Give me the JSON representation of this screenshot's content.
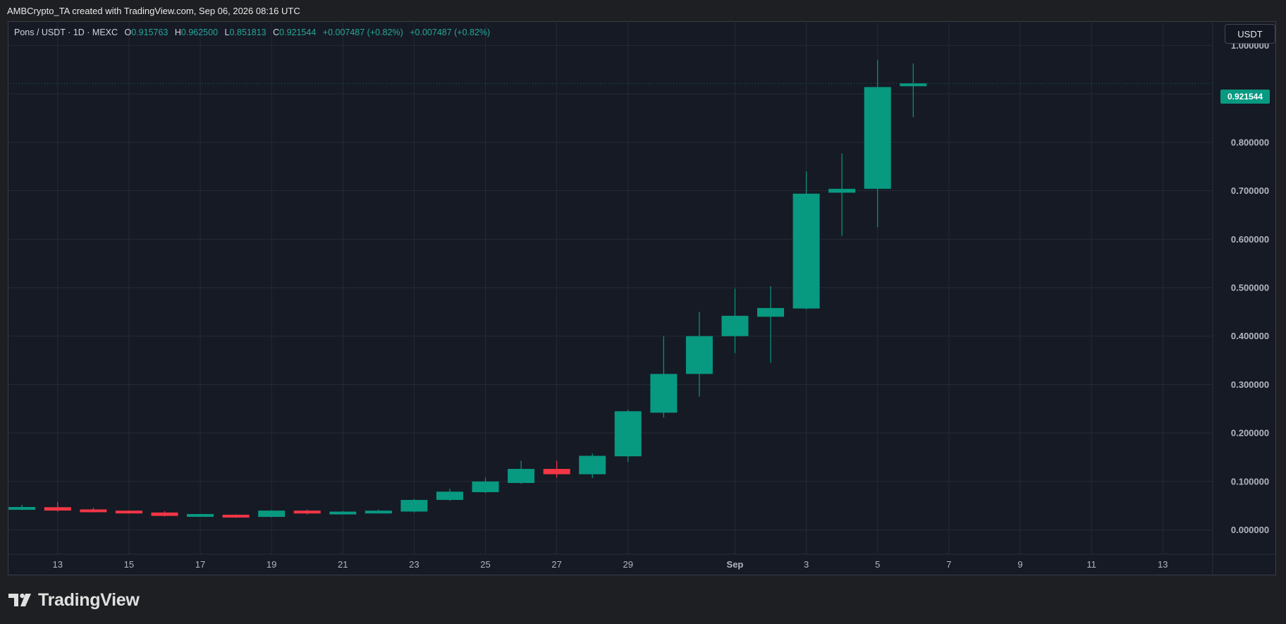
{
  "header": {
    "credit": "AMBCrypto_TA created with TradingView.com, Sep 06, 2026 08:16 UTC"
  },
  "legend": {
    "symbol": "Pons / USDT · 1D · MEXC",
    "o_label": "O",
    "o_value": "0.915763",
    "h_label": "H",
    "h_value": "0.962500",
    "l_label": "L",
    "l_value": "0.851813",
    "c_label": "C",
    "c_value": "0.921544",
    "change": "+0.007487 (+0.82%)",
    "change2": "+0.007487 (+0.82%)"
  },
  "currency_button": "USDT",
  "last_price": "0.921544",
  "brand": {
    "name": "TradingView"
  },
  "colors": {
    "up": "#089981",
    "down": "#f23645",
    "background": "#161a25",
    "grid": "#262a35"
  },
  "chart_data": {
    "type": "candlestick",
    "ylim": [
      -0.05,
      1.05
    ],
    "y_ticks": [
      {
        "value": 1.0,
        "label": "1.000000"
      },
      {
        "value": 0.9,
        "label": "0.900000"
      },
      {
        "value": 0.8,
        "label": "0.800000"
      },
      {
        "value": 0.7,
        "label": "0.700000"
      },
      {
        "value": 0.6,
        "label": "0.600000"
      },
      {
        "value": 0.5,
        "label": "0.500000"
      },
      {
        "value": 0.4,
        "label": "0.400000"
      },
      {
        "value": 0.3,
        "label": "0.300000"
      },
      {
        "value": 0.2,
        "label": "0.200000"
      },
      {
        "value": 0.1,
        "label": "0.100000"
      },
      {
        "value": 0.0,
        "label": "0.000000"
      }
    ],
    "x_ticks": [
      {
        "day": 13,
        "label": "13",
        "bold": false
      },
      {
        "day": 15,
        "label": "15",
        "bold": false
      },
      {
        "day": 17,
        "label": "17",
        "bold": false
      },
      {
        "day": 19,
        "label": "19",
        "bold": false
      },
      {
        "day": 21,
        "label": "21",
        "bold": false
      },
      {
        "day": 23,
        "label": "23",
        "bold": false
      },
      {
        "day": 25,
        "label": "25",
        "bold": false
      },
      {
        "day": 27,
        "label": "27",
        "bold": false
      },
      {
        "day": 29,
        "label": "29",
        "bold": false
      },
      {
        "day": 32,
        "label": "Sep",
        "bold": true
      },
      {
        "day": 34,
        "label": "3",
        "bold": false
      },
      {
        "day": 36,
        "label": "5",
        "bold": false
      },
      {
        "day": 38,
        "label": "7",
        "bold": false
      },
      {
        "day": 40,
        "label": "9",
        "bold": false
      },
      {
        "day": 42,
        "label": "11",
        "bold": false
      },
      {
        "day": 44,
        "label": "13",
        "bold": false
      }
    ],
    "x_range": [
      11.6,
      45.4
    ],
    "candles": [
      {
        "day": 12,
        "o": 0.043,
        "h": 0.052,
        "l": 0.041,
        "c": 0.046
      },
      {
        "day": 13,
        "o": 0.047,
        "h": 0.058,
        "l": 0.038,
        "c": 0.04
      },
      {
        "day": 14,
        "o": 0.041,
        "h": 0.046,
        "l": 0.036,
        "c": 0.038
      },
      {
        "day": 15,
        "o": 0.038,
        "h": 0.04,
        "l": 0.034,
        "c": 0.036
      },
      {
        "day": 16,
        "o": 0.036,
        "h": 0.039,
        "l": 0.028,
        "c": 0.029
      },
      {
        "day": 17,
        "o": 0.029,
        "h": 0.033,
        "l": 0.027,
        "c": 0.031
      },
      {
        "day": 18,
        "o": 0.03,
        "h": 0.032,
        "l": 0.025,
        "c": 0.027
      },
      {
        "day": 19,
        "o": 0.027,
        "h": 0.041,
        "l": 0.026,
        "c": 0.04
      },
      {
        "day": 20,
        "o": 0.04,
        "h": 0.042,
        "l": 0.032,
        "c": 0.034
      },
      {
        "day": 21,
        "o": 0.034,
        "h": 0.039,
        "l": 0.032,
        "c": 0.036
      },
      {
        "day": 22,
        "o": 0.035,
        "h": 0.042,
        "l": 0.034,
        "c": 0.039
      },
      {
        "day": 23,
        "o": 0.038,
        "h": 0.064,
        "l": 0.036,
        "c": 0.062
      },
      {
        "day": 24,
        "o": 0.062,
        "h": 0.085,
        "l": 0.06,
        "c": 0.079
      },
      {
        "day": 25,
        "o": 0.078,
        "h": 0.108,
        "l": 0.076,
        "c": 0.1
      },
      {
        "day": 26,
        "o": 0.097,
        "h": 0.143,
        "l": 0.095,
        "c": 0.126
      },
      {
        "day": 27,
        "o": 0.126,
        "h": 0.143,
        "l": 0.108,
        "c": 0.115
      },
      {
        "day": 28,
        "o": 0.115,
        "h": 0.158,
        "l": 0.107,
        "c": 0.153
      },
      {
        "day": 29,
        "o": 0.152,
        "h": 0.248,
        "l": 0.14,
        "c": 0.245
      },
      {
        "day": 30,
        "o": 0.242,
        "h": 0.4,
        "l": 0.232,
        "c": 0.322
      },
      {
        "day": 31,
        "o": 0.322,
        "h": 0.45,
        "l": 0.275,
        "c": 0.4
      },
      {
        "day": 32,
        "o": 0.4,
        "h": 0.498,
        "l": 0.365,
        "c": 0.442
      },
      {
        "day": 33,
        "o": 0.44,
        "h": 0.503,
        "l": 0.345,
        "c": 0.458
      },
      {
        "day": 34,
        "o": 0.457,
        "h": 0.74,
        "l": 0.455,
        "c": 0.694
      },
      {
        "day": 35,
        "o": 0.696,
        "h": 0.777,
        "l": 0.607,
        "c": 0.704
      },
      {
        "day": 36,
        "o": 0.704,
        "h": 0.97,
        "l": 0.625,
        "c": 0.914
      },
      {
        "day": 37,
        "o": 0.915763,
        "h": 0.9625,
        "l": 0.851813,
        "c": 0.921544
      }
    ]
  }
}
